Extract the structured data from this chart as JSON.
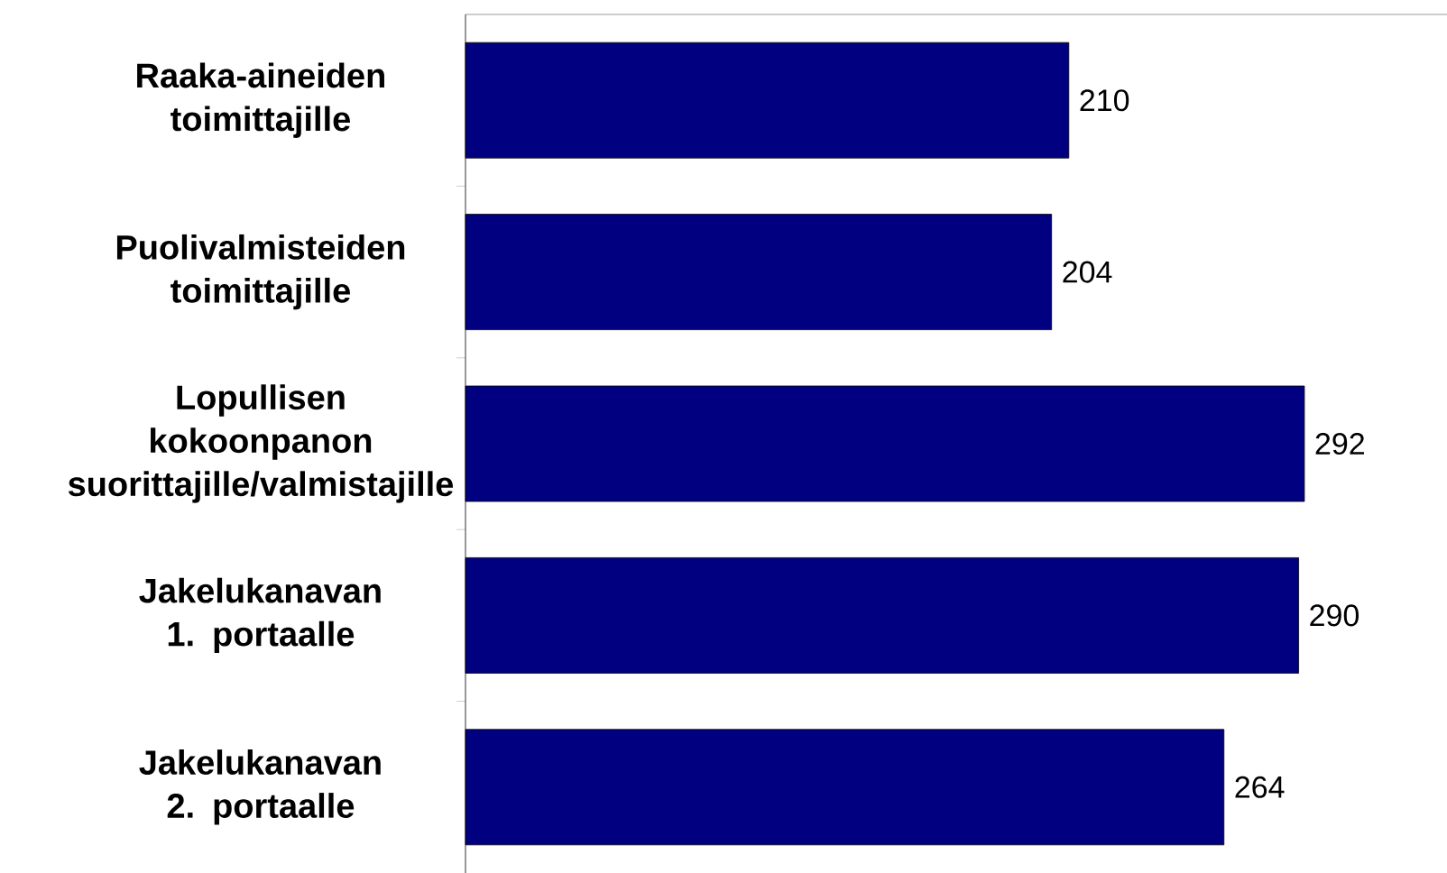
{
  "chart_data": {
    "type": "bar",
    "orientation": "horizontal",
    "data_labels": true,
    "color": "#000080",
    "categories": [
      "Raaka-aineiden toimittajille",
      "Puolivalmisteiden toimittajille",
      "Lopullisen kokoonpanon suorittajille/valmistajille",
      "Jakelukanavan 1. portaalle",
      "Jakelukanavan 2. portaalle"
    ],
    "values": [
      210,
      204,
      292,
      290,
      264
    ]
  }
}
